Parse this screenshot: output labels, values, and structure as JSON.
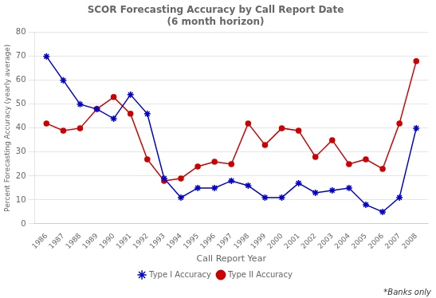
{
  "chart_data": {
    "type": "line",
    "title": "SCOR Forecasting Accuracy by Call Report Date",
    "subtitle": "(6 month horizon)",
    "xlabel": "Call Report Year",
    "ylabel": "Percent Forecasting Accuracy (yearly average)",
    "annotation": "*Banks only",
    "x": [
      1986,
      1987,
      1988,
      1989,
      1990,
      1991,
      1992,
      1993,
      1994,
      1995,
      1996,
      1997,
      1998,
      1999,
      2000,
      2001,
      2002,
      2003,
      2004,
      2005,
      2006,
      2007,
      2008
    ],
    "series": [
      {
        "name": "Type I Accuracy",
        "color": "#0000CC",
        "marker": "star",
        "values": [
          70,
          60,
          50,
          48,
          44,
          54,
          46,
          19,
          11,
          15,
          15,
          18,
          16,
          11,
          11,
          17,
          13,
          14,
          15,
          8,
          5,
          11,
          40
        ]
      },
      {
        "name": "Type II Accuracy",
        "color": "#CC0000",
        "marker": "circle",
        "values": [
          42,
          39,
          40,
          48,
          53,
          46,
          27,
          18,
          19,
          24,
          26,
          25,
          42,
          33,
          40,
          39,
          28,
          35,
          25,
          27,
          23,
          42,
          68
        ]
      }
    ],
    "xlim": [
      1985.3,
      2008.7
    ],
    "xticks": [
      1986,
      1987,
      1988,
      1989,
      1990,
      1991,
      1992,
      1993,
      1994,
      1995,
      1996,
      1997,
      1998,
      1999,
      2000,
      2001,
      2002,
      2003,
      2004,
      2005,
      2006,
      2007,
      2008
    ],
    "ylim": [
      0,
      80
    ],
    "yticks": [
      0,
      10,
      20,
      30,
      40,
      50,
      60,
      70,
      80
    ],
    "grid": "y",
    "legend": "bottom"
  }
}
